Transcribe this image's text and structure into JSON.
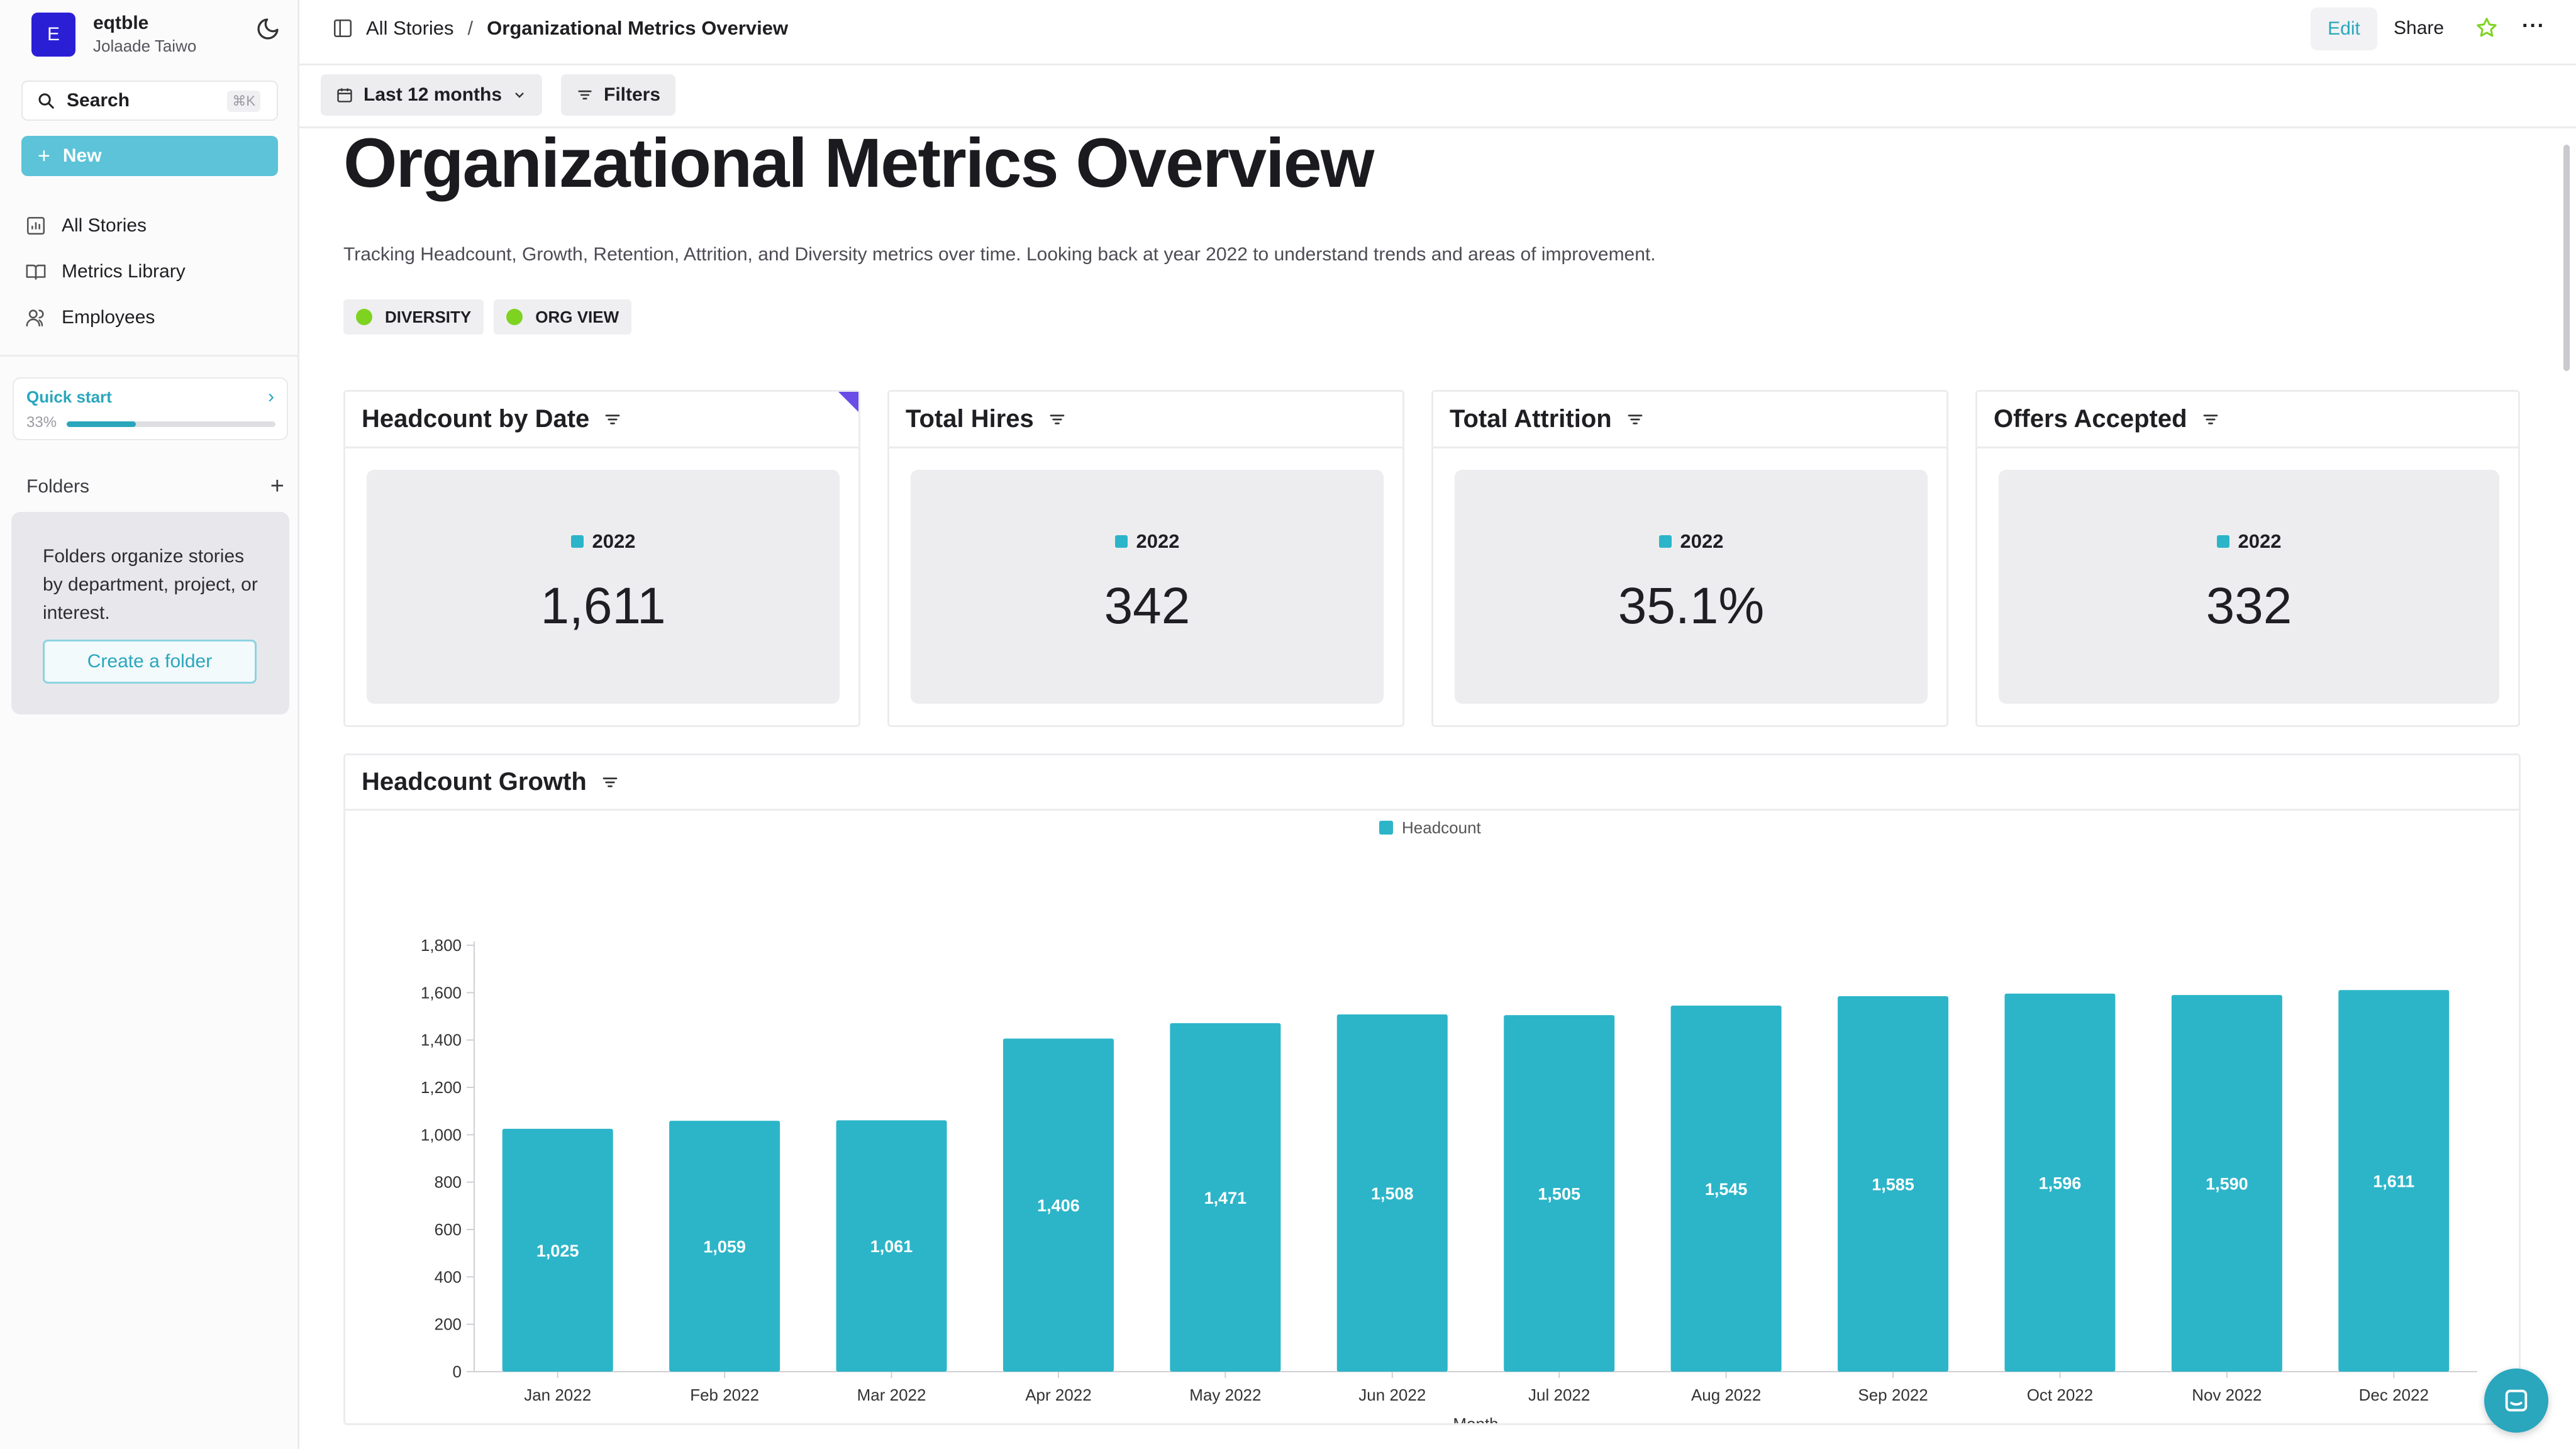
{
  "workspace": {
    "initial": "E",
    "name": "eqtble",
    "user": "Jolaade Taiwo"
  },
  "sidebar": {
    "search_label": "Search",
    "search_shortcut": "⌘K",
    "new_label": "New",
    "nav": [
      {
        "label": "All Stories",
        "icon": "chart-icon"
      },
      {
        "label": "Metrics Library",
        "icon": "book-icon"
      },
      {
        "label": "Employees",
        "icon": "people-icon"
      }
    ],
    "quick_start": {
      "label": "Quick start",
      "progress_text": "33%",
      "progress": 0.33
    },
    "folders": {
      "label": "Folders",
      "empty_text": "Folders organize stories by department, project, or interest.",
      "create_label": "Create a folder"
    }
  },
  "topbar": {
    "breadcrumb_root": "All Stories",
    "breadcrumb_sep": "/",
    "breadcrumb_current": "Organizational Metrics Overview",
    "edit_label": "Edit",
    "share_label": "Share",
    "more_label": "···"
  },
  "filters": {
    "date_range": "Last 12 months",
    "filters_label": "Filters"
  },
  "story": {
    "title": "Organizational Metrics Overview",
    "description": "Tracking Headcount, Growth, Retention, Attrition, and Diversity metrics over time. Looking back at year 2022 to understand trends and areas of improvement.",
    "tags": [
      "DIVERSITY",
      "ORG VIEW"
    ]
  },
  "kpis": [
    {
      "title": "Headcount by Date",
      "legend": "2022",
      "value": "1,611"
    },
    {
      "title": "Total Hires",
      "legend": "2022",
      "value": "342"
    },
    {
      "title": "Total Attrition",
      "legend": "2022",
      "value": "35.1%"
    },
    {
      "title": "Offers Accepted",
      "legend": "2022",
      "value": "332"
    }
  ],
  "colors": {
    "accent": "#2aa6bd",
    "bar": "#2cb5c8",
    "brand": "#2b1fd6",
    "tag_dot": "#7ed321"
  },
  "growth_chart": {
    "title": "Headcount Growth",
    "chart_data": {
      "type": "bar",
      "title": "Headcount Growth",
      "legend": [
        "Headcount"
      ],
      "legend_position": "top-center",
      "categories": [
        "Jan 2022",
        "Feb 2022",
        "Mar 2022",
        "Apr 2022",
        "May 2022",
        "Jun 2022",
        "Jul 2022",
        "Aug 2022",
        "Sep 2022",
        "Oct 2022",
        "Nov 2022",
        "Dec 2022"
      ],
      "series": [
        {
          "name": "Headcount",
          "values": [
            1025,
            1059,
            1061,
            1406,
            1471,
            1508,
            1505,
            1545,
            1585,
            1596,
            1590,
            1611
          ]
        }
      ],
      "data_labels": [
        "1,025",
        "1,059",
        "1,061",
        "1,406",
        "1,471",
        "1,508",
        "1,505",
        "1,545",
        "1,585",
        "1,596",
        "1,590",
        "1,611"
      ],
      "yticks": [
        "0",
        "200",
        "400",
        "600",
        "800",
        "1,000",
        "1,200",
        "1,400",
        "1,600",
        "1,800"
      ],
      "ylim": [
        0,
        1800
      ],
      "xlabel": "Month",
      "ylabel": "",
      "grid": false
    }
  }
}
